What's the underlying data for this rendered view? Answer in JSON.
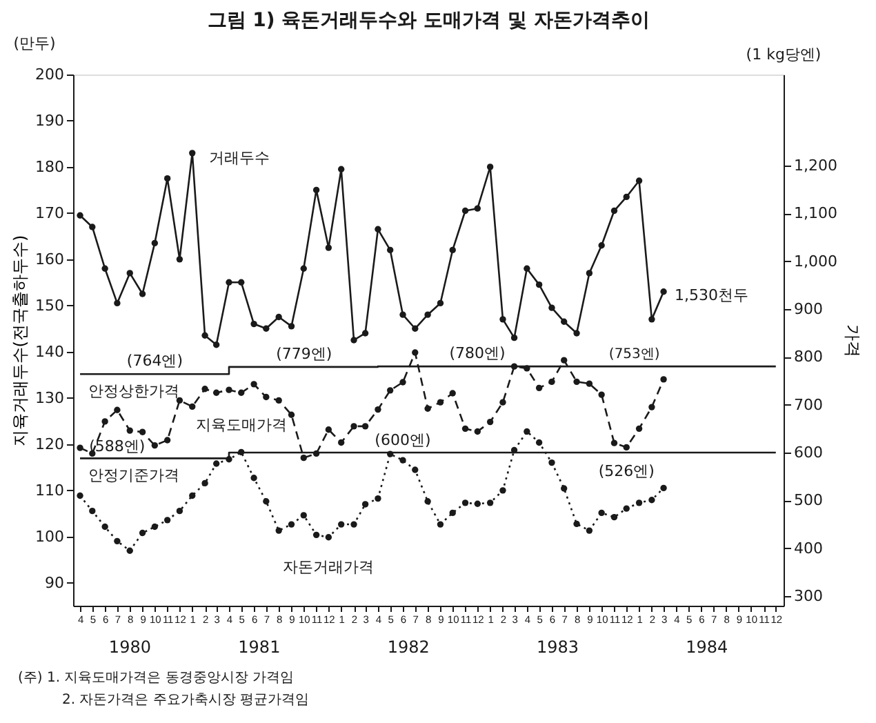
{
  "chart_data": {
    "type": "line",
    "title": "그림 1) 육돈거래두수와 도매가격 및 자돈가격추이",
    "ylabel": "지육거래두수(전국출하두수)",
    "y2label": "가격",
    "x": [
      "1980-04",
      "1980-05",
      "1980-06",
      "1980-07",
      "1980-08",
      "1980-09",
      "1980-10",
      "1980-11",
      "1980-12",
      "1981-01",
      "1981-02",
      "1981-03",
      "1981-04",
      "1981-05",
      "1981-06",
      "1981-07",
      "1981-08",
      "1981-09",
      "1981-10",
      "1981-11",
      "1981-12",
      "1982-01",
      "1982-02",
      "1982-03",
      "1982-04",
      "1982-05",
      "1982-06",
      "1982-07",
      "1982-08",
      "1982-09",
      "1982-10",
      "1982-11",
      "1982-12",
      "1983-01",
      "1983-02",
      "1983-03",
      "1983-04",
      "1983-05",
      "1983-06",
      "1983-07",
      "1983-08",
      "1983-09",
      "1983-10",
      "1983-11",
      "1983-12",
      "1984-01",
      "1984-02",
      "1984-03"
    ],
    "series": [
      {
        "name": "거래두수",
        "color": "#1a1a1a",
        "marker": "circle",
        "line_style": "solid",
        "values": [
          169.5,
          167,
          158,
          150.5,
          157,
          152.5,
          163.5,
          177.5,
          160,
          183,
          143.5,
          141.5,
          155,
          155,
          146,
          145,
          147.5,
          145.5,
          158,
          175,
          162.5,
          179.5,
          142.5,
          144,
          166.5,
          162,
          148,
          145,
          148,
          150.5,
          162,
          170.5,
          171,
          180,
          147,
          143,
          158,
          154.5,
          149.5,
          146.5,
          144,
          157,
          163,
          170.5,
          173.5,
          177,
          147,
          153
        ]
      },
      {
        "name": "지육도매가격",
        "axis": "y2",
        "color": "#1a1a1a",
        "marker": "circle",
        "line_style": "dashed",
        "values": [
          610,
          598,
          665,
          689,
          646,
          643,
          615,
          626,
          709,
          696,
          733,
          725,
          731,
          725,
          743,
          716,
          709,
          679,
          589,
          598,
          648,
          621,
          655,
          655,
          690,
          730,
          747,
          809,
          692,
          705,
          724,
          650,
          644,
          664,
          705,
          780,
          776,
          735,
          748,
          793,
          748,
          744,
          721,
          620,
          611,
          650,
          695,
          753
        ]
      },
      {
        "name": "자돈거래가격",
        "axis": "y2",
        "color": "#1a1a1a",
        "marker": "circle",
        "line_style": "dotted",
        "values": [
          510,
          478,
          445,
          415,
          395,
          432,
          445,
          459,
          478,
          510,
          536,
          577,
          586,
          601,
          547,
          498,
          437,
          450,
          469,
          428,
          423,
          450,
          450,
          492,
          504,
          597,
          584,
          564,
          498,
          450,
          474,
          495,
          493,
          495,
          521,
          605,
          644,
          621,
          579,
          525,
          451,
          437,
          474,
          465,
          483,
          495,
          501,
          526
        ]
      },
      {
        "name": "안정상한가격",
        "type": "step",
        "axis": "y2",
        "color": "#1a1a1a",
        "marker": "none",
        "line_style": "solid",
        "x": [
          "1980-04",
          "1981-04",
          "1982-04",
          "1984-12"
        ],
        "values": [
          764,
          779,
          780,
          780
        ]
      },
      {
        "name": "안정기준가격",
        "type": "step",
        "axis": "y2",
        "color": "#1a1a1a",
        "marker": "none",
        "line_style": "solid",
        "x": [
          "1980-04",
          "1981-04",
          "1984-12"
        ],
        "values": [
          588,
          600,
          600
        ]
      }
    ],
    "xlim": [
      "1980-03-15",
      "1984-12-20"
    ],
    "xticks": [
      {
        "value": "1980-04",
        "label": "4"
      },
      {
        "value": "1980-05",
        "label": "5"
      },
      {
        "value": "1980-06",
        "label": "6"
      },
      {
        "value": "1980-07",
        "label": "7"
      },
      {
        "value": "1980-08",
        "label": "8"
      },
      {
        "value": "1980-09",
        "label": "9"
      },
      {
        "value": "1980-10",
        "label": "10"
      },
      {
        "value": "1980-11",
        "label": "11"
      },
      {
        "value": "1980-12",
        "label": "12"
      },
      {
        "value": "1981-01",
        "label": "1"
      },
      {
        "value": "1981-02",
        "label": "2"
      },
      {
        "value": "1981-03",
        "label": "3"
      },
      {
        "value": "1981-04",
        "label": "4"
      },
      {
        "value": "1981-05",
        "label": "5"
      },
      {
        "value": "1981-06",
        "label": "6"
      },
      {
        "value": "1981-07",
        "label": "7"
      },
      {
        "value": "1981-08",
        "label": "8"
      },
      {
        "value": "1981-09",
        "label": "9"
      },
      {
        "value": "1981-10",
        "label": "10"
      },
      {
        "value": "1981-11",
        "label": "11"
      },
      {
        "value": "1981-12",
        "label": "12"
      },
      {
        "value": "1982-01",
        "label": "1"
      },
      {
        "value": "1982-02",
        "label": "2"
      },
      {
        "value": "1982-03",
        "label": "3"
      },
      {
        "value": "1982-04",
        "label": "4"
      },
      {
        "value": "1982-05",
        "label": "5"
      },
      {
        "value": "1982-06",
        "label": "6"
      },
      {
        "value": "1982-07",
        "label": "7"
      },
      {
        "value": "1982-08",
        "label": "8"
      },
      {
        "value": "1982-09",
        "label": "9"
      },
      {
        "value": "1982-10",
        "label": "10"
      },
      {
        "value": "1982-11",
        "label": "11"
      },
      {
        "value": "1982-12",
        "label": "12"
      },
      {
        "value": "1983-01",
        "label": "1"
      },
      {
        "value": "1983-02",
        "label": "2"
      },
      {
        "value": "1983-03",
        "label": "3"
      },
      {
        "value": "1983-04",
        "label": "4"
      },
      {
        "value": "1983-05",
        "label": "5"
      },
      {
        "value": "1983-06",
        "label": "6"
      },
      {
        "value": "1983-07",
        "label": "7"
      },
      {
        "value": "1983-08",
        "label": "8"
      },
      {
        "value": "1983-09",
        "label": "9"
      },
      {
        "value": "1983-10",
        "label": "10"
      },
      {
        "value": "1983-11",
        "label": "11"
      },
      {
        "value": "1983-12",
        "label": "12"
      },
      {
        "value": "1984-01",
        "label": "1"
      },
      {
        "value": "1984-02",
        "label": "2"
      },
      {
        "value": "1984-03",
        "label": "3"
      },
      {
        "value": "1984-04",
        "label": "4"
      },
      {
        "value": "1984-05",
        "label": "5"
      },
      {
        "value": "1984-06",
        "label": "6"
      },
      {
        "value": "1984-07",
        "label": "7"
      },
      {
        "value": "1984-08",
        "label": "8"
      },
      {
        "value": "1984-09",
        "label": "9"
      },
      {
        "value": "1984-10",
        "label": "10"
      },
      {
        "value": "1984-11",
        "label": "11"
      },
      {
        "value": "1984-12",
        "label": "12"
      }
    ],
    "ylim": [
      85,
      200
    ],
    "yticks": [
      90,
      100,
      110,
      120,
      130,
      140,
      150,
      160,
      170,
      180,
      190,
      200
    ],
    "y2lim": [
      280,
      1390
    ],
    "y2ticks": [
      300,
      400,
      500,
      600,
      700,
      800,
      900,
      {
        "value": 1000,
        "label": "1,000"
      },
      {
        "value": 1100,
        "label": "1,100"
      },
      {
        "value": 1200,
        "label": "1,200"
      }
    ],
    "annotations": [
      "(만두)",
      "(1 kg당엔)",
      "(주) 1. 지육도매가격은 동경중앙시장 가격임",
      "2. 자돈가격은 주요가축시장 평균가격임",
      "(764엔)",
      "(779엔)",
      "(780엔)",
      "(753엔)",
      "(588엔)",
      "(600엔)",
      "(526엔)",
      "1980",
      "1981",
      "1982",
      "1983",
      "1984",
      {
        "text": "1,530천두",
        "x": "1984-03",
        "y": 153
      }
    ]
  }
}
